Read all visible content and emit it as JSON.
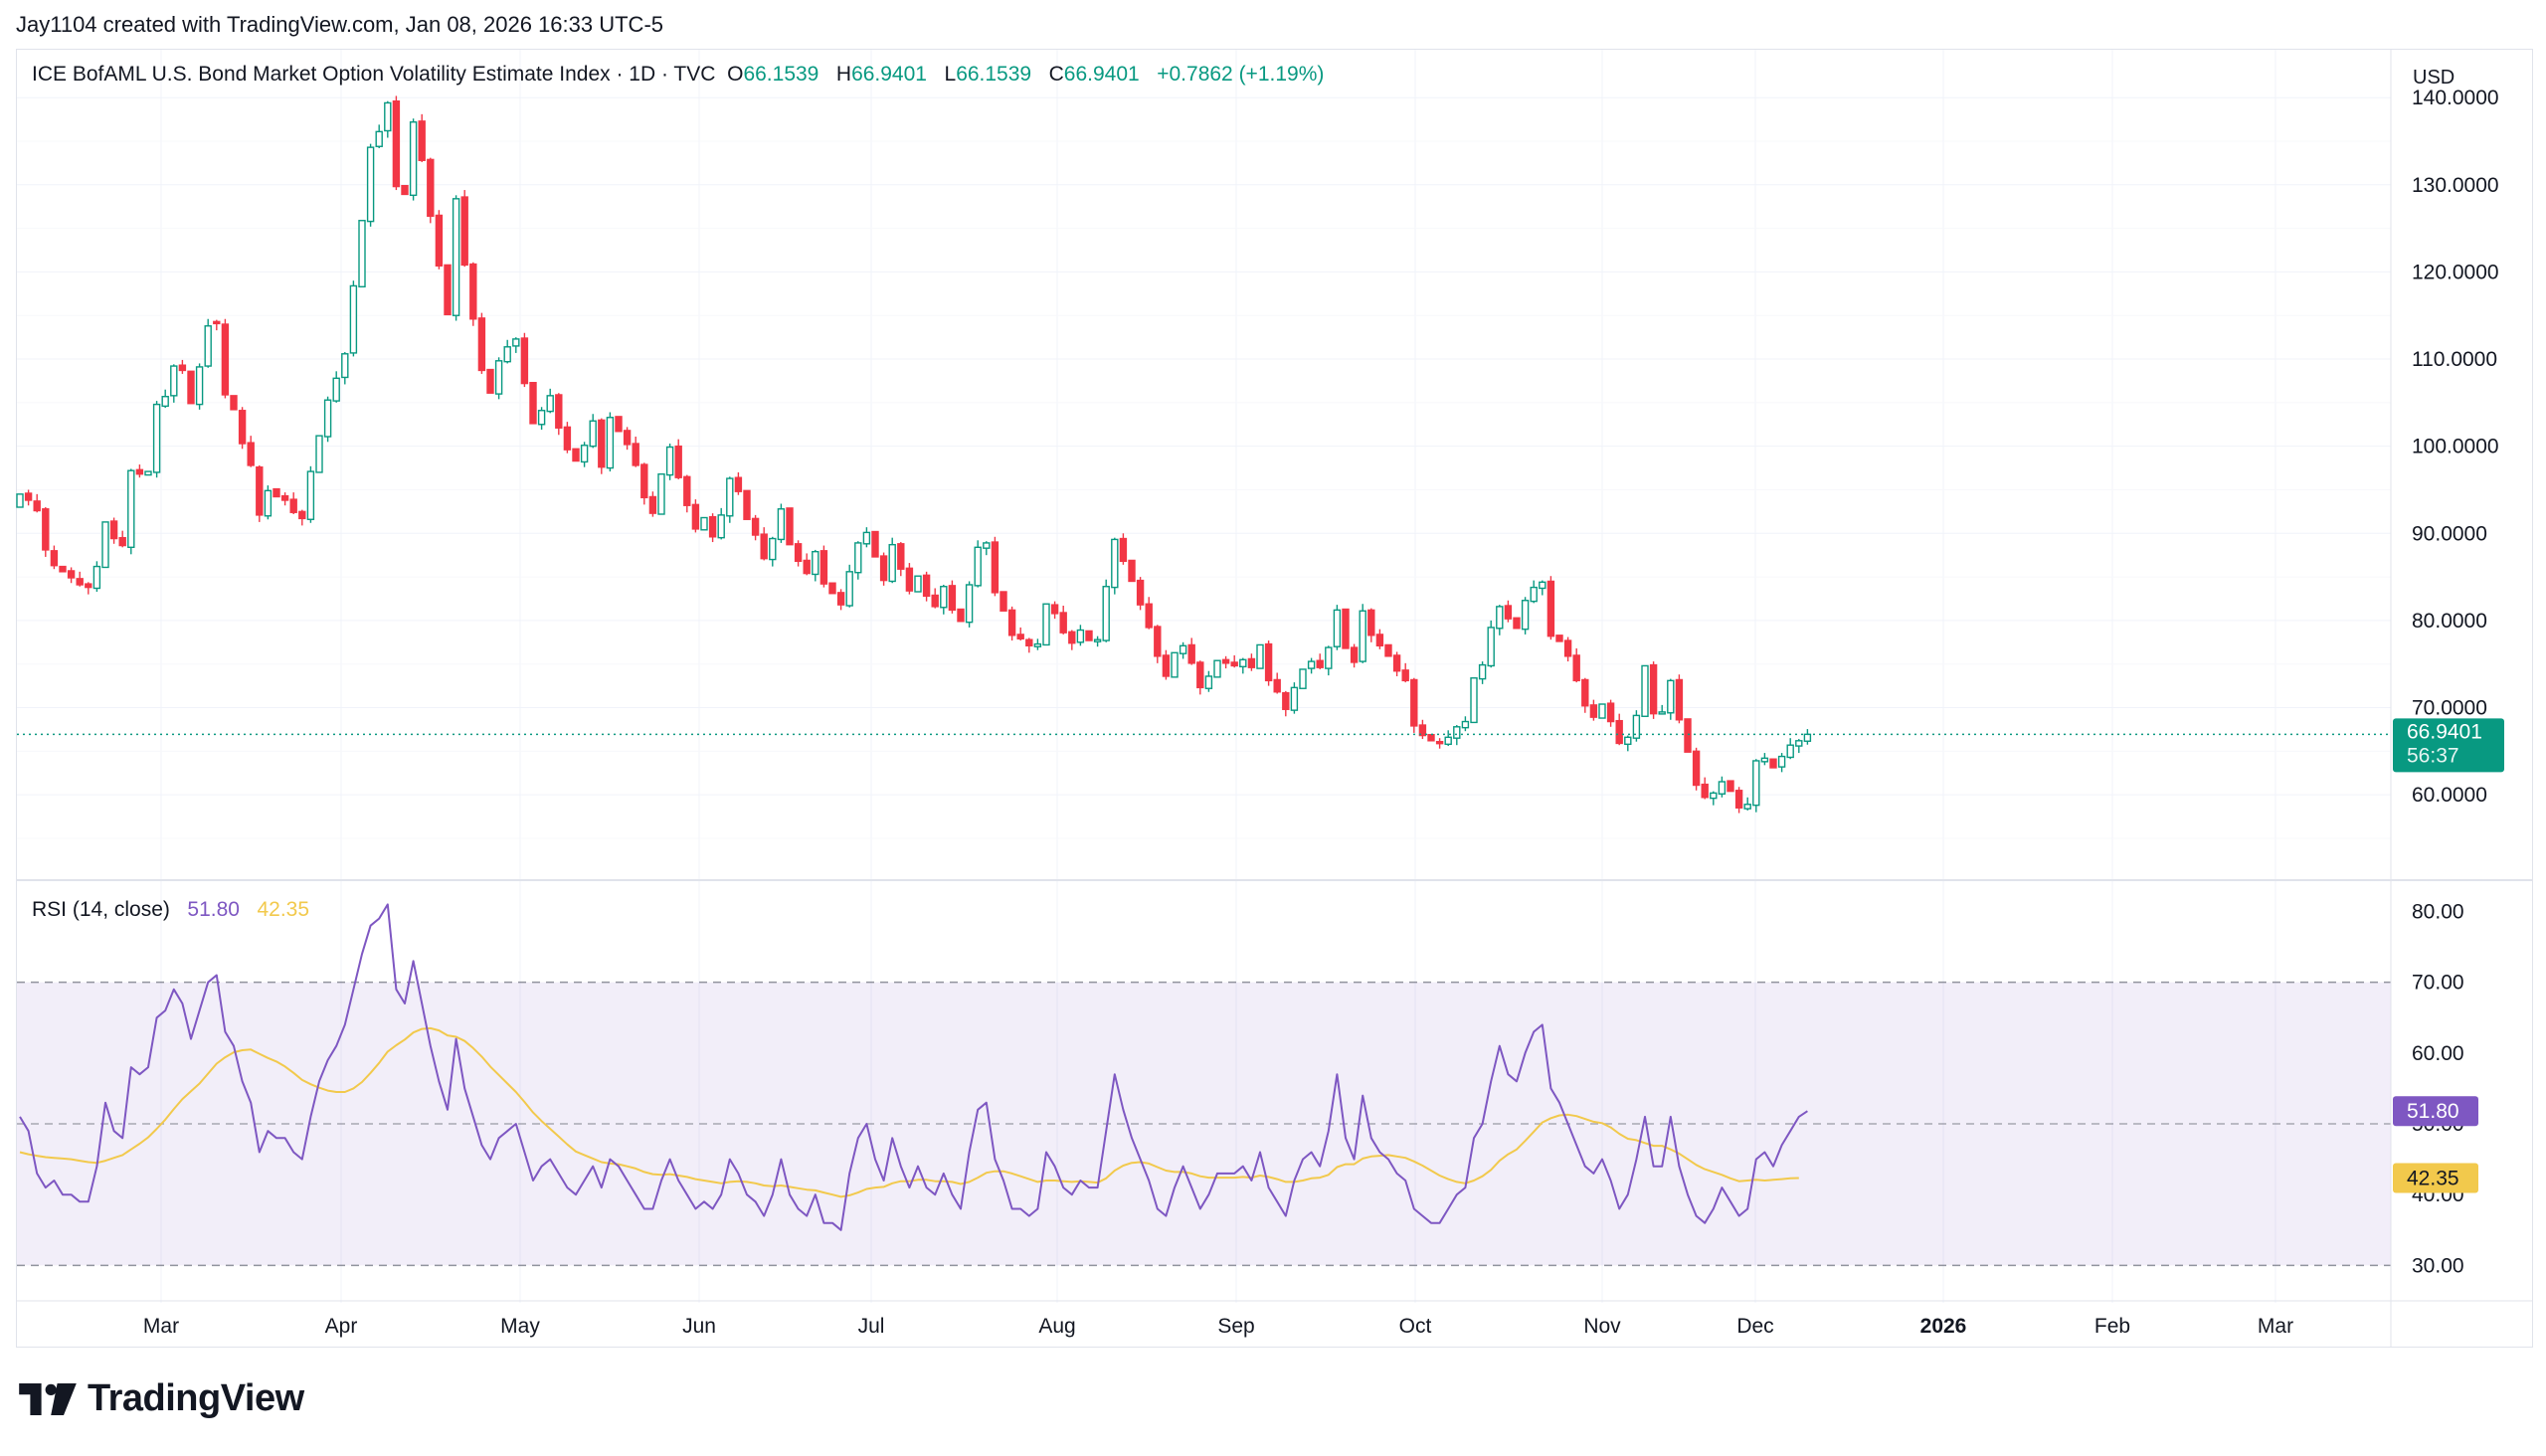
{
  "header": {
    "credit": "Jay1104 created with TradingView.com, Jan 08, 2026 16:33 UTC-5"
  },
  "legend": {
    "title": "ICE BofAML U.S. Bond Market Option Volatility Estimate Index · 1D · TVC",
    "o_label": "O",
    "o_value": "66.1539",
    "h_label": "H",
    "h_value": "66.9401",
    "l_label": "L",
    "l_value": "66.1539",
    "c_label": "C",
    "c_value": "66.9401",
    "change": "+0.7862 (+1.19%)"
  },
  "currency_label": "USD",
  "rsi_legend": {
    "label": "RSI (14, close)",
    "rsi_value": "51.80",
    "ma_value": "42.35"
  },
  "colors": {
    "up": "#089981",
    "down": "#f23645",
    "up_body": "#ffffff",
    "rsi_line": "#7e57c2",
    "rsi_ma": "#f2c94c",
    "rsi_band": "#7e57c2",
    "price_line": "#089981",
    "grid": "#f0f3fa",
    "axis_text": "#131722"
  },
  "chart_data": [
    {
      "type": "candlestick",
      "title": "ICE BofAML U.S. Bond Market Option Volatility Estimate Index · 1D · TVC",
      "x_tick_labels": [
        "Mar",
        "Apr",
        "May",
        "Jun",
        "Jul",
        "Aug",
        "Sep",
        "Oct",
        "Nov",
        "Dec",
        "2026",
        "Feb",
        "Mar"
      ],
      "x_tick_bold": [
        false,
        false,
        false,
        false,
        false,
        false,
        false,
        false,
        false,
        false,
        true,
        false,
        false
      ],
      "y_ticks": [
        "140.0000",
        "130.0000",
        "120.0000",
        "110.0000",
        "100.0000",
        "90.0000",
        "80.0000",
        "70.0000",
        "60.0000"
      ],
      "y_tick_values": [
        140,
        130,
        120,
        110,
        100,
        90,
        80,
        70,
        60
      ],
      "ylim": [
        50.2,
        145.5
      ],
      "last_price": "66.9401",
      "last_price_value": 66.9401,
      "countdown": "56:37",
      "closes": [
        94.5,
        93.8,
        92.6,
        88.1,
        86.3,
        85.6,
        84.9,
        84.1,
        83.8,
        86.2,
        91.3,
        89.4,
        88.6,
        97.2,
        96.8,
        97.1,
        104.8,
        105.7,
        109.2,
        108.7,
        104.9,
        109.1,
        113.8,
        114.1,
        105.9,
        104.2,
        100.3,
        97.8,
        92.1,
        94.9,
        94.2,
        93.8,
        92.4,
        91.7,
        97.1,
        101.2,
        105.3,
        107.8,
        110.6,
        118.4,
        125.9,
        134.3,
        136.1,
        139.4,
        129.8,
        128.9,
        137.2,
        132.8,
        126.4,
        120.7,
        115.1,
        128.4,
        120.8,
        114.6,
        108.7,
        106.1,
        109.8,
        111.4,
        112.3,
        107.2,
        102.6,
        104.1,
        105.8,
        102.1,
        99.6,
        98.3,
        100.1,
        102.9,
        97.6,
        103.3,
        101.7,
        100.2,
        97.8,
        94.1,
        92.3,
        96.8,
        99.9,
        96.4,
        93.2,
        90.5,
        91.8,
        89.6,
        92.1,
        96.3,
        94.8,
        91.6,
        89.8,
        87.1,
        89.4,
        92.8,
        88.7,
        86.8,
        85.4,
        87.9,
        84.2,
        83.1,
        81.8,
        85.6,
        88.9,
        90.1,
        87.3,
        84.6,
        88.7,
        85.9,
        83.4,
        85.1,
        82.8,
        81.6,
        83.9,
        81.2,
        79.9,
        84.1,
        88.4,
        88.9,
        83.2,
        81.1,
        78.3,
        77.9,
        77.1,
        77.3,
        81.9,
        80.8,
        78.6,
        77.4,
        78.9,
        77.7,
        77.8,
        83.9,
        89.3,
        86.8,
        84.5,
        81.8,
        79.2,
        75.9,
        73.6,
        76.3,
        77.1,
        75.1,
        72.3,
        73.6,
        75.4,
        75.1,
        74.8,
        75.5,
        74.6,
        77.2,
        73.1,
        71.8,
        69.8,
        72.3,
        74.4,
        75.3,
        74.6,
        76.9,
        81.2,
        76.8,
        75.2,
        81.1,
        78.3,
        77.1,
        75.9,
        74.2,
        73.1,
        67.9,
        66.8,
        66.2,
        65.9,
        66.6,
        67.8,
        68.4,
        73.4,
        74.9,
        79.2,
        81.6,
        80.2,
        79.1,
        82.3,
        83.8,
        84.4,
        78.2,
        77.6,
        75.9,
        73.1,
        70.2,
        68.9,
        70.4,
        68.4,
        65.9,
        66.6,
        69.1,
        74.8,
        69.3,
        69.5,
        73.1,
        68.6,
        64.9,
        61.1,
        59.7,
        60.2,
        61.5,
        60.4,
        58.5,
        58.9,
        63.9,
        64.2,
        63.1,
        64.4,
        65.7,
        66.2,
        66.94
      ],
      "opens": [
        93.0,
        94.6,
        93.7,
        92.8,
        88.0,
        86.2,
        85.7,
        84.8,
        84.2,
        83.7,
        86.1,
        91.4,
        89.5,
        88.4,
        97.3,
        96.7,
        97.0,
        104.6,
        105.8,
        109.3,
        108.6,
        104.8,
        109.2,
        114.3,
        114.0,
        105.8,
        104.1,
        100.4,
        97.6,
        92.0,
        95.1,
        94.3,
        93.9,
        92.5,
        91.6,
        97.0,
        101.1,
        105.2,
        107.9,
        110.7,
        118.3,
        125.8,
        134.4,
        136.2,
        139.6,
        129.9,
        128.8,
        137.3,
        132.9,
        126.5,
        120.8,
        115.0,
        128.6,
        120.9,
        114.7,
        108.8,
        106.0,
        109.7,
        111.5,
        112.4,
        107.3,
        102.5,
        104.0,
        105.9,
        102.2,
        99.7,
        98.2,
        100.0,
        103.0,
        97.5,
        103.4,
        101.8,
        100.3,
        97.9,
        94.2,
        92.2,
        96.7,
        100.0,
        96.5,
        93.3,
        90.4,
        91.9,
        89.5,
        92.0,
        96.4,
        94.9,
        91.7,
        89.9,
        87.0,
        89.3,
        92.9,
        88.8,
        86.9,
        85.3,
        88.0,
        84.3,
        83.2,
        81.7,
        85.5,
        88.8,
        90.2,
        87.4,
        84.5,
        88.8,
        86.0,
        83.3,
        85.2,
        82.9,
        81.5,
        84.0,
        81.3,
        79.8,
        84.0,
        88.3,
        89.0,
        83.3,
        81.2,
        78.4,
        77.8,
        77.0,
        77.2,
        81.8,
        80.9,
        78.7,
        77.5,
        78.8,
        77.6,
        77.7,
        83.8,
        89.4,
        86.9,
        84.6,
        81.9,
        79.3,
        76.0,
        73.5,
        76.2,
        77.2,
        75.2,
        72.2,
        73.5,
        75.5,
        75.2,
        74.7,
        75.6,
        74.5,
        77.3,
        73.2,
        71.7,
        69.7,
        72.2,
        74.5,
        75.4,
        74.5,
        77.0,
        81.3,
        76.9,
        75.3,
        81.2,
        78.4,
        77.2,
        76.0,
        74.3,
        73.2,
        68.0,
        66.9,
        66.1,
        65.8,
        66.5,
        67.7,
        68.3,
        73.3,
        74.8,
        79.1,
        81.7,
        80.3,
        79.0,
        82.2,
        83.7,
        84.5,
        78.3,
        77.7,
        76.0,
        73.2,
        70.3,
        68.8,
        70.5,
        68.5,
        65.8,
        66.5,
        69.0,
        74.9,
        69.4,
        69.4,
        73.2,
        68.7,
        65.0,
        61.2,
        59.6,
        60.1,
        61.6,
        60.5,
        58.4,
        58.8,
        63.8,
        64.1,
        63.2,
        64.3,
        65.6,
        66.15
      ],
      "highs_extra": 0.8,
      "lows_extra": 0.8
    },
    {
      "type": "line",
      "title": "RSI (14, close)",
      "series": [
        {
          "name": "RSI",
          "values": [
            51,
            49,
            43,
            41,
            42,
            40,
            40,
            39,
            39,
            44,
            53,
            49,
            48,
            58,
            57,
            58,
            65,
            66,
            69,
            67,
            62,
            66,
            70,
            71,
            63,
            61,
            56,
            53,
            46,
            49,
            48,
            48,
            46,
            45,
            51,
            56,
            59,
            61,
            64,
            69,
            74,
            78,
            79,
            81,
            69,
            67,
            73,
            67,
            61,
            56,
            52,
            62,
            55,
            51,
            47,
            45,
            48,
            49,
            50,
            46,
            42,
            44,
            45,
            43,
            41,
            40,
            42,
            44,
            41,
            45,
            44,
            42,
            40,
            38,
            38,
            42,
            45,
            42,
            40,
            38,
            39,
            38,
            40,
            45,
            43,
            40,
            39,
            37,
            40,
            45,
            40,
            38,
            37,
            40,
            36,
            36,
            35,
            43,
            48,
            50,
            45,
            42,
            48,
            44,
            41,
            44,
            41,
            40,
            43,
            40,
            38,
            46,
            52,
            53,
            45,
            42,
            38,
            38,
            37,
            38,
            46,
            44,
            41,
            40,
            42,
            41,
            41,
            49,
            57,
            52,
            48,
            45,
            42,
            38,
            37,
            41,
            44,
            41,
            38,
            40,
            43,
            43,
            43,
            44,
            42,
            46,
            41,
            39,
            37,
            42,
            45,
            46,
            44,
            49,
            57,
            48,
            45,
            54,
            48,
            46,
            45,
            43,
            42,
            38,
            37,
            36,
            36,
            38,
            40,
            41,
            48,
            50,
            56,
            61,
            57,
            56,
            60,
            63,
            64,
            55,
            53,
            50,
            47,
            44,
            43,
            45,
            42,
            38,
            40,
            45,
            51,
            44,
            44,
            51,
            44,
            40,
            37,
            36,
            38,
            41,
            39,
            37,
            38,
            45,
            46,
            44,
            47,
            49,
            51,
            51.8
          ]
        },
        {
          "name": "RSI-based MA",
          "values": [
            46,
            45.7,
            45.5,
            45.3,
            45.2,
            45.1,
            45,
            44.8,
            44.6,
            44.5,
            44.8,
            45.2,
            45.6,
            46.4,
            47.2,
            48.1,
            49.3,
            50.6,
            52.1,
            53.5,
            54.6,
            55.7,
            57.1,
            58.5,
            59.4,
            60.1,
            60.4,
            60.5,
            59.9,
            59.3,
            58.8,
            58.1,
            57.2,
            56.2,
            55.6,
            55.1,
            54.7,
            54.5,
            54.5,
            55.0,
            55.9,
            57.2,
            58.6,
            60.2,
            61.1,
            61.9,
            62.9,
            63.4,
            63.5,
            63.2,
            62.5,
            62.3,
            61.7,
            60.7,
            59.5,
            58.1,
            56.9,
            55.7,
            54.5,
            53.1,
            51.6,
            50.4,
            49.3,
            48.2,
            47.1,
            46.1,
            45.6,
            45.1,
            44.6,
            44.4,
            44.3,
            44.0,
            43.7,
            43.2,
            42.9,
            42.8,
            42.9,
            42.7,
            42.5,
            42.2,
            42.0,
            41.8,
            41.6,
            41.8,
            41.9,
            41.8,
            41.6,
            41.3,
            41.2,
            41.3,
            41.1,
            40.9,
            40.7,
            40.6,
            40.3,
            40.0,
            39.7,
            39.9,
            40.3,
            40.8,
            41.0,
            41.1,
            41.6,
            41.9,
            41.9,
            42.1,
            42.1,
            41.9,
            41.9,
            41.8,
            41.5,
            41.8,
            42.4,
            43.1,
            43.3,
            43.3,
            43.0,
            42.6,
            42.2,
            41.8,
            42.0,
            42.0,
            41.9,
            41.8,
            41.9,
            41.8,
            41.7,
            42.3,
            43.4,
            44.1,
            44.5,
            44.6,
            44.4,
            43.9,
            43.4,
            43.2,
            43.2,
            43.0,
            42.6,
            42.4,
            42.4,
            42.4,
            42.4,
            42.5,
            42.4,
            42.7,
            42.5,
            42.2,
            41.8,
            41.8,
            42.0,
            42.3,
            42.4,
            42.8,
            43.9,
            44.3,
            44.3,
            45.1,
            45.4,
            45.5,
            45.6,
            45.4,
            45.2,
            44.7,
            44.1,
            43.4,
            42.7,
            42.2,
            41.8,
            41.6,
            42.0,
            42.6,
            43.5,
            44.8,
            45.7,
            46.4,
            47.6,
            48.9,
            50.2,
            50.8,
            51.2,
            51.3,
            51.1,
            50.7,
            50.3,
            50.1,
            49.5,
            48.6,
            47.9,
            47.7,
            47.3,
            46.9,
            46.9,
            46.4,
            45.8,
            45.0,
            44.2,
            43.6,
            43.2,
            42.8,
            42.3,
            41.9,
            42.0,
            42.1,
            42.0,
            42.1,
            42.2,
            42.3,
            42.35
          ]
        }
      ],
      "y_ticks": [
        "80.00",
        "70.00",
        "60.00",
        "50.00",
        "40.00",
        "30.00"
      ],
      "y_tick_values": [
        80,
        70,
        60,
        50,
        40,
        30
      ],
      "ylim": [
        25,
        84
      ],
      "bands": {
        "upper": 70,
        "middle": 50,
        "lower": 30
      },
      "last_rsi": "51.80",
      "last_ma": "42.35"
    }
  ]
}
